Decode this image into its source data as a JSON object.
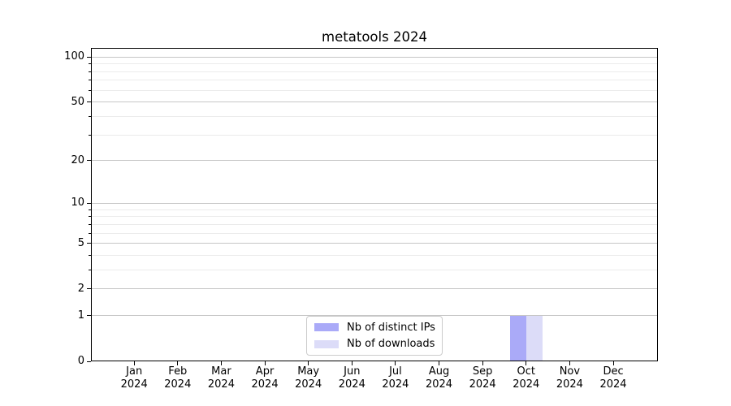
{
  "chart_data": {
    "type": "bar",
    "title": "metatools 2024",
    "x": {
      "months": [
        "Jan",
        "Feb",
        "Mar",
        "Apr",
        "May",
        "Jun",
        "Jul",
        "Aug",
        "Sep",
        "Oct",
        "Nov",
        "Dec"
      ],
      "year": "2024"
    },
    "series": [
      {
        "name": "Nb of distinct IPs",
        "color": "#aaaaf8",
        "values": [
          0,
          0,
          0,
          0,
          0,
          0,
          0,
          0,
          0,
          1,
          0,
          0
        ]
      },
      {
        "name": "Nb of downloads",
        "color": "#dcdcf8",
        "values": [
          0,
          0,
          0,
          0,
          0,
          0,
          0,
          0,
          0,
          1,
          0,
          0
        ]
      }
    ],
    "y_axis": {
      "scale": "log10(1+v)",
      "major_ticks": [
        0,
        1,
        2,
        5,
        10,
        20,
        50,
        100
      ],
      "minor_ticks": [
        3,
        4,
        6,
        7,
        8,
        9,
        30,
        40,
        60,
        70,
        80,
        90
      ],
      "top_value": 115
    },
    "legend": {
      "position": "bottom-center"
    },
    "grid": true
  },
  "colors": {
    "grid_major": "#c6c6c6",
    "grid_minor": "#ebebeb",
    "axis_frame": "#000000",
    "tick_text": "#000000",
    "legend_border": "#cccccc",
    "legend_bg": "#ffffff"
  }
}
